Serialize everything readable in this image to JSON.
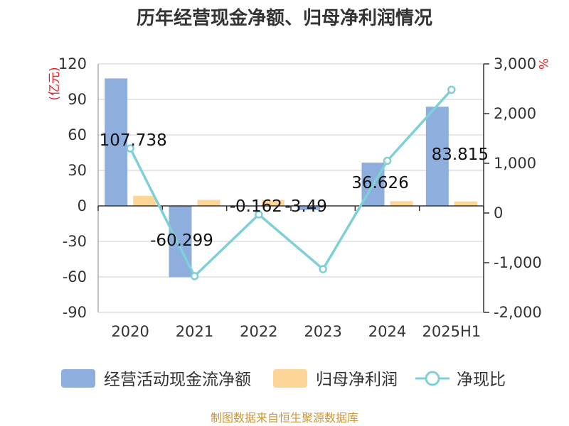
{
  "colors": {
    "bar_cash": "#8eaede",
    "bar_profit": "#fdd596",
    "line_ratio": "#7fd0d6"
  },
  "source": "制图数据来自恒生聚源数据库",
  "chart_data": {
    "type": "bar",
    "title": "历年经营现金净额、归母净利润情况",
    "categories": [
      "2020",
      "2021",
      "2022",
      "2023",
      "2024",
      "2025H1"
    ],
    "y_left": {
      "unit": "(亿元)",
      "ylim": [
        -90,
        120
      ],
      "ticks": [
        120,
        90,
        60,
        30,
        0,
        -30,
        -60,
        -90
      ]
    },
    "y_right": {
      "unit": "%",
      "ylim": [
        -2000,
        3000
      ],
      "ticks": [
        "3,000",
        "2,000",
        "1,000",
        "0",
        "-1,000",
        "-2,000"
      ],
      "tick_values": [
        3000,
        2000,
        1000,
        0,
        -1000,
        -2000
      ]
    },
    "series": [
      {
        "name": "经营活动现金流净额",
        "type": "bar",
        "axis": "left",
        "values": [
          107.738,
          -60.299,
          -0.162,
          -3.49,
          36.626,
          83.815
        ],
        "labels": [
          "107.738",
          "-60.299",
          "-0.162",
          "-3.49",
          "36.626",
          "83.815"
        ]
      },
      {
        "name": "归母净利润",
        "type": "bar",
        "axis": "left",
        "values": [
          8.5,
          5.0,
          4.8,
          0.0,
          4.0,
          3.8
        ]
      },
      {
        "name": "净现比",
        "type": "line",
        "axis": "right",
        "values": [
          1300,
          -1270,
          -30,
          -1130,
          1050,
          2480
        ]
      }
    ],
    "grid": true,
    "legend": "bottom"
  }
}
